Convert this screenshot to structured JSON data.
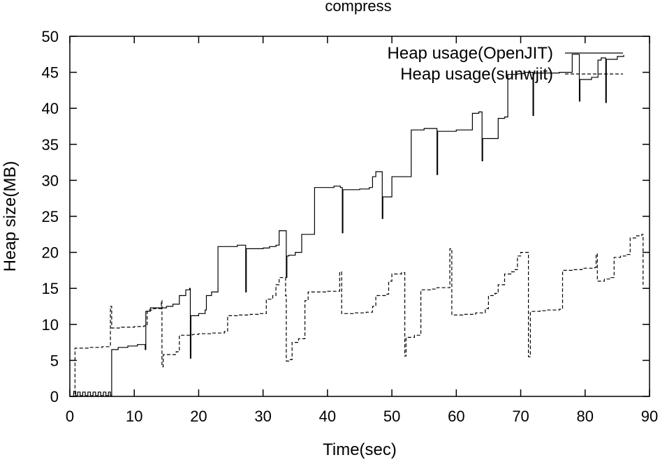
{
  "chart_data": {
    "type": "line",
    "title": "compress",
    "xlabel": "Time(sec)",
    "ylabel": "Heap size(MB)",
    "xlim": [
      0,
      90
    ],
    "ylim": [
      0,
      50
    ],
    "xticks": [
      0,
      10,
      20,
      30,
      40,
      50,
      60,
      70,
      80,
      90
    ],
    "yticks": [
      0,
      5,
      10,
      15,
      20,
      25,
      30,
      35,
      40,
      45,
      50
    ],
    "grid": false,
    "legend_position": "top-right",
    "series": [
      {
        "name": "Heap usage(OpenJIT)",
        "style": "solid",
        "color": "#000000",
        "points": [
          [
            0.1,
            0.0
          ],
          [
            0.6,
            0.7
          ],
          [
            0.9,
            0.1
          ],
          [
            1.2,
            0.6
          ],
          [
            1.6,
            0.1
          ],
          [
            2.0,
            0.6
          ],
          [
            2.4,
            0.1
          ],
          [
            2.8,
            0.6
          ],
          [
            3.2,
            0.1
          ],
          [
            3.6,
            0.6
          ],
          [
            4.0,
            0.1
          ],
          [
            4.4,
            0.6
          ],
          [
            4.8,
            0.1
          ],
          [
            5.2,
            0.6
          ],
          [
            5.6,
            0.1
          ],
          [
            6.0,
            0.6
          ],
          [
            6.3,
            0.1
          ],
          [
            6.5,
            6.5
          ],
          [
            7.5,
            6.8
          ],
          [
            9.0,
            7.0
          ],
          [
            10.5,
            7.2
          ],
          [
            11.5,
            7.2
          ],
          [
            11.7,
            6.5
          ],
          [
            11.8,
            11.8
          ],
          [
            12.5,
            12.3
          ],
          [
            14.0,
            12.3
          ],
          [
            15.0,
            12.5
          ],
          [
            16.0,
            12.8
          ],
          [
            17.0,
            14.0
          ],
          [
            18.0,
            14.8
          ],
          [
            18.6,
            15.0
          ],
          [
            18.7,
            5.3
          ],
          [
            18.8,
            11.2
          ],
          [
            20.0,
            11.5
          ],
          [
            21.0,
            12.0
          ],
          [
            21.2,
            14.0
          ],
          [
            22.0,
            14.5
          ],
          [
            23.0,
            20.8
          ],
          [
            25.0,
            20.8
          ],
          [
            26.0,
            21.0
          ],
          [
            27.2,
            21.0
          ],
          [
            27.3,
            14.5
          ],
          [
            27.4,
            20.5
          ],
          [
            29.0,
            20.5
          ],
          [
            30.0,
            20.6
          ],
          [
            31.0,
            20.8
          ],
          [
            32.0,
            21.0
          ],
          [
            32.5,
            23.0
          ],
          [
            33.5,
            23.0
          ],
          [
            33.6,
            16.5
          ],
          [
            33.7,
            19.5
          ],
          [
            34.0,
            19.6
          ],
          [
            35.0,
            20.0
          ],
          [
            36.0,
            22.5
          ],
          [
            37.0,
            22.5
          ],
          [
            38.0,
            29.0
          ],
          [
            40.0,
            29.0
          ],
          [
            41.0,
            29.2
          ],
          [
            42.0,
            29.0
          ],
          [
            42.3,
            22.7
          ],
          [
            42.4,
            28.7
          ],
          [
            44.0,
            28.7
          ],
          [
            45.0,
            28.8
          ],
          [
            46.5,
            29.0
          ],
          [
            47.0,
            30.5
          ],
          [
            47.5,
            31.2
          ],
          [
            48.3,
            31.2
          ],
          [
            48.5,
            24.7
          ],
          [
            48.6,
            27.7
          ],
          [
            49.5,
            27.7
          ],
          [
            50.0,
            30.5
          ],
          [
            51.5,
            30.5
          ],
          [
            53.0,
            37.0
          ],
          [
            55.0,
            37.2
          ],
          [
            56.5,
            37.2
          ],
          [
            57.0,
            30.8
          ],
          [
            57.1,
            36.8
          ],
          [
            59.0,
            36.8
          ],
          [
            60.0,
            37.0
          ],
          [
            62.0,
            37.0
          ],
          [
            62.5,
            39.3
          ],
          [
            63.5,
            39.5
          ],
          [
            64.0,
            32.7
          ],
          [
            64.1,
            35.8
          ],
          [
            66.0,
            35.8
          ],
          [
            66.5,
            38.6
          ],
          [
            67.5,
            38.8
          ],
          [
            68.0,
            44.7
          ],
          [
            69.5,
            44.8
          ],
          [
            70.5,
            45.0
          ],
          [
            71.8,
            45.0
          ],
          [
            71.9,
            39.0
          ],
          [
            72.0,
            44.9
          ],
          [
            74.0,
            44.9
          ],
          [
            76.0,
            45.0
          ],
          [
            77.5,
            45.0
          ],
          [
            78.0,
            47.5
          ],
          [
            79.0,
            47.5
          ],
          [
            79.1,
            41.0
          ],
          [
            79.2,
            44.0
          ],
          [
            80.5,
            44.0
          ],
          [
            81.0,
            44.3
          ],
          [
            82.0,
            46.7
          ],
          [
            82.5,
            47.0
          ],
          [
            83.0,
            47.0
          ],
          [
            83.2,
            40.8
          ],
          [
            83.3,
            46.8
          ],
          [
            85.0,
            47.2
          ],
          [
            86.0,
            47.4
          ]
        ]
      },
      {
        "name": "Heap usage(sunwjit)",
        "style": "dashed",
        "color": "#000000",
        "points": [
          [
            0.3,
            0.0
          ],
          [
            0.8,
            6.7
          ],
          [
            3.0,
            6.8
          ],
          [
            5.0,
            6.9
          ],
          [
            6.2,
            6.9
          ],
          [
            6.3,
            12.5
          ],
          [
            6.5,
            9.5
          ],
          [
            8.0,
            9.6
          ],
          [
            10.0,
            9.7
          ],
          [
            11.5,
            9.8
          ],
          [
            12.0,
            12.0
          ],
          [
            13.0,
            12.2
          ],
          [
            14.2,
            13.3
          ],
          [
            14.3,
            4.1
          ],
          [
            14.5,
            5.8
          ],
          [
            15.5,
            5.8
          ],
          [
            16.5,
            6.2
          ],
          [
            17.0,
            8.5
          ],
          [
            18.5,
            8.5
          ],
          [
            19.0,
            8.6
          ],
          [
            20.0,
            8.7
          ],
          [
            22.0,
            8.8
          ],
          [
            24.0,
            9.0
          ],
          [
            24.5,
            11.2
          ],
          [
            26.0,
            11.3
          ],
          [
            28.0,
            11.4
          ],
          [
            29.5,
            11.5
          ],
          [
            30.5,
            13.5
          ],
          [
            31.5,
            14.0
          ],
          [
            32.0,
            15.5
          ],
          [
            32.5,
            16.5
          ],
          [
            33.3,
            16.5
          ],
          [
            33.5,
            14.0
          ],
          [
            33.6,
            4.9
          ],
          [
            34.0,
            5.1
          ],
          [
            34.5,
            7.5
          ],
          [
            35.5,
            8.0
          ],
          [
            36.5,
            13.3
          ],
          [
            37.0,
            14.5
          ],
          [
            39.0,
            14.5
          ],
          [
            40.0,
            14.6
          ],
          [
            41.8,
            14.6
          ],
          [
            41.9,
            17.3
          ],
          [
            42.2,
            11.5
          ],
          [
            44.0,
            11.6
          ],
          [
            46.0,
            11.7
          ],
          [
            47.0,
            12.5
          ],
          [
            47.5,
            14.0
          ],
          [
            49.0,
            14.2
          ],
          [
            49.5,
            16.0
          ],
          [
            50.0,
            17.0
          ],
          [
            51.5,
            17.2
          ],
          [
            52.0,
            5.6
          ],
          [
            52.2,
            8.2
          ],
          [
            53.5,
            8.5
          ],
          [
            54.5,
            14.8
          ],
          [
            56.0,
            14.9
          ],
          [
            57.0,
            15.1
          ],
          [
            58.5,
            15.1
          ],
          [
            59.0,
            20.5
          ],
          [
            59.3,
            11.3
          ],
          [
            61.0,
            11.4
          ],
          [
            63.0,
            11.6
          ],
          [
            64.5,
            12.2
          ],
          [
            65.0,
            14.0
          ],
          [
            66.0,
            14.3
          ],
          [
            66.5,
            15.5
          ],
          [
            67.5,
            17.0
          ],
          [
            68.5,
            17.3
          ],
          [
            69.0,
            17.6
          ],
          [
            69.5,
            19.5
          ],
          [
            70.0,
            20.0
          ],
          [
            70.8,
            20.0
          ],
          [
            71.2,
            5.5
          ],
          [
            71.5,
            11.8
          ],
          [
            73.0,
            11.9
          ],
          [
            74.0,
            12.0
          ],
          [
            76.0,
            12.1
          ],
          [
            76.5,
            17.5
          ],
          [
            78.0,
            17.6
          ],
          [
            79.5,
            17.8
          ],
          [
            81.5,
            17.9
          ],
          [
            81.7,
            19.8
          ],
          [
            81.9,
            16.0
          ],
          [
            83.0,
            16.3
          ],
          [
            84.0,
            16.5
          ],
          [
            84.5,
            19.3
          ],
          [
            85.5,
            19.5
          ],
          [
            86.5,
            19.7
          ],
          [
            87.0,
            22.0
          ],
          [
            88.0,
            22.3
          ],
          [
            88.8,
            22.5
          ],
          [
            89.0,
            15.5
          ]
        ]
      }
    ]
  }
}
